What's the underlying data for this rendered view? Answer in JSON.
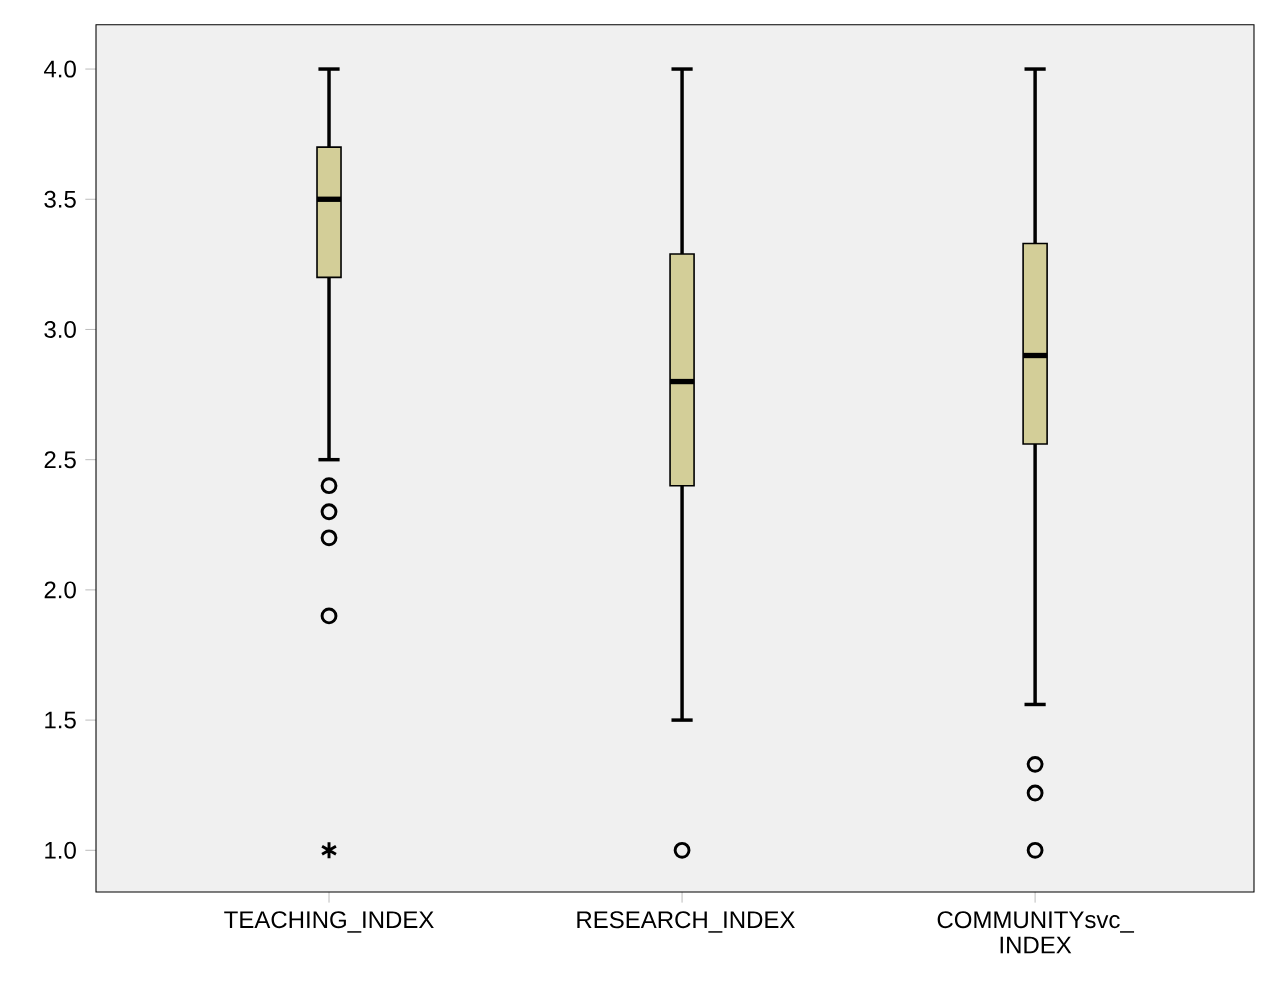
{
  "chart_data": {
    "type": "box",
    "categories": [
      "TEACHING_INDEX",
      "RESEARCH_INDEX",
      "COMMUNITYsvc_ INDEX"
    ],
    "color": "#d3ce98",
    "boxes": [
      {
        "low": 2.5,
        "q1": 3.2,
        "median": 3.5,
        "q3": 3.7,
        "high": 4.0,
        "outliers": [
          2.4,
          2.3,
          2.2,
          1.9
        ]
      },
      {
        "low": 1.5,
        "q1": 2.4,
        "median": 2.8,
        "q3": 3.29,
        "high": 4.0,
        "outliers": [
          1.0
        ]
      },
      {
        "low": 1.56,
        "q1": 2.56,
        "median": 2.9,
        "q3": 3.33,
        "high": 4.0,
        "outliers": [
          1.33,
          1.22,
          1.0
        ]
      }
    ],
    "series": [
      {
        "type": "scatter",
        "x": [
          "TEACHING_INDEX"
        ],
        "values": [
          1.0
        ],
        "marker": "cross",
        "color": "#000000"
      }
    ],
    "ylim": [
      0.84,
      4.17
    ],
    "yticks": [
      {
        "value": 1.0,
        "label": "1.0"
      },
      {
        "value": 1.5,
        "label": "1.5"
      },
      {
        "value": 2.0,
        "label": "2.0"
      },
      {
        "value": 2.5,
        "label": "2.5"
      },
      {
        "value": 3.0,
        "label": "3.0"
      },
      {
        "value": 3.5,
        "label": "3.5"
      },
      {
        "value": 4.0,
        "label": "4.0"
      }
    ],
    "grid": false
  }
}
